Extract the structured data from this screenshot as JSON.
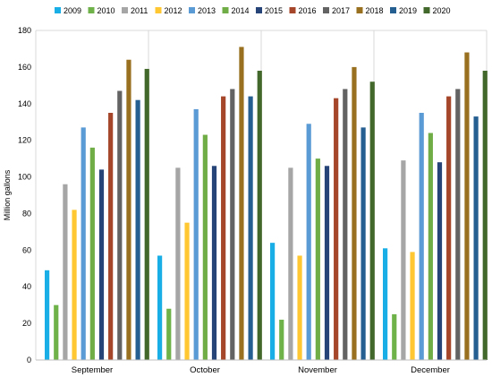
{
  "chart_data": {
    "type": "bar",
    "title": "",
    "xlabel": "",
    "ylabel": "Million gallons",
    "ylim": [
      0,
      180
    ],
    "yticks": [
      "0",
      "20",
      "40",
      "60",
      "80",
      "100",
      "120",
      "140",
      "160",
      "180"
    ],
    "grid": "vertical separators between categories",
    "legend_position": "top",
    "categories": [
      "September",
      "October",
      "November",
      "December"
    ],
    "series": [
      {
        "name": "2009",
        "color": "#1aaee6",
        "values": [
          49,
          57,
          64,
          61
        ]
      },
      {
        "name": "2010",
        "color": "#6fb24a",
        "values": [
          30,
          28,
          22,
          25
        ]
      },
      {
        "name": "2011",
        "color": "#a6a6a6",
        "values": [
          96,
          105,
          105,
          109
        ]
      },
      {
        "name": "2012",
        "color": "#ffc833",
        "values": [
          82,
          75,
          57,
          59
        ]
      },
      {
        "name": "2013",
        "color": "#5b9bd5",
        "values": [
          127,
          137,
          129,
          135
        ]
      },
      {
        "name": "2014",
        "color": "#70ad47",
        "values": [
          116,
          123,
          110,
          124
        ]
      },
      {
        "name": "2015",
        "color": "#264478",
        "values": [
          104,
          106,
          106,
          108
        ]
      },
      {
        "name": "2016",
        "color": "#a5462a",
        "values": [
          135,
          144,
          143,
          144
        ]
      },
      {
        "name": "2017",
        "color": "#636363",
        "values": [
          147,
          148,
          148,
          148
        ]
      },
      {
        "name": "2018",
        "color": "#99701f",
        "values": [
          164,
          171,
          160,
          168
        ]
      },
      {
        "name": "2019",
        "color": "#255e91",
        "values": [
          142,
          144,
          127,
          133
        ]
      },
      {
        "name": "2020",
        "color": "#43682b",
        "values": [
          159,
          158,
          152,
          158
        ]
      }
    ]
  }
}
